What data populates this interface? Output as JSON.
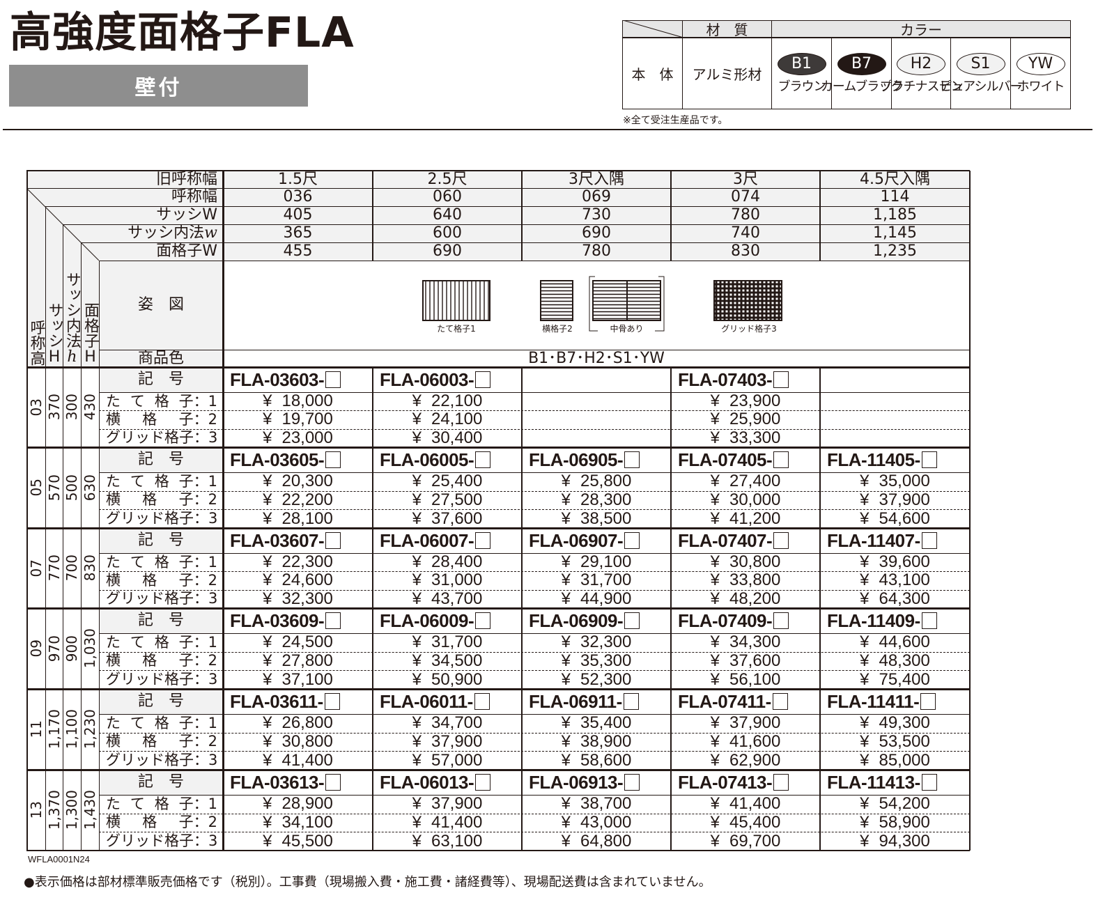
{
  "title": "高強度面格子FLA",
  "mount_tag": "壁付",
  "spec": {
    "material_header": "材　質",
    "color_header": "カラー",
    "row_label": "本　体",
    "material": "アルミ形材",
    "colors": [
      {
        "code": "B1",
        "name": "ブラウン",
        "fill": "#3e3a39",
        "text": "#ffffff"
      },
      {
        "code": "B7",
        "name": "カームブラック",
        "fill": "#231815",
        "text": "#ffffff"
      },
      {
        "code": "H2",
        "name": "プラチナステン",
        "fill": "#f2f2f2",
        "text": "#231815"
      },
      {
        "code": "S1",
        "name": "ピュアシルバー",
        "fill": "#f2f2f2",
        "text": "#231815"
      },
      {
        "code": "YW",
        "name": "ホワイト",
        "fill": "#ffffff",
        "text": "#231815"
      }
    ],
    "note": "※全て受注生産品です。"
  },
  "table": {
    "row_labels": {
      "old_width": "旧呼称幅",
      "width": "呼称幅",
      "sash_w": "サッシW",
      "sash_inner_w": "サッシ内法",
      "sash_inner_w_var": "w",
      "grille_w": "面格子W",
      "figure": "姿　図",
      "color": "商品色",
      "code": "記　号",
      "types": [
        {
          "name": "たて格子",
          "num": "：1"
        },
        {
          "name": "横格子",
          "num": "：2"
        },
        {
          "name": "グリッド格子",
          "num": "：3"
        }
      ]
    },
    "vertical_headers": {
      "height": "呼称高",
      "sash_h": "サッシH",
      "sash_inner_h": "サッシ内法",
      "sash_inner_h_var": "h",
      "grille_h": "面格子H"
    },
    "columns": [
      {
        "old_width": "1.5尺",
        "width": "036",
        "sash_w": "405",
        "inner_w": "365",
        "grille_w": "455"
      },
      {
        "old_width": "2.5尺",
        "width": "060",
        "sash_w": "640",
        "inner_w": "600",
        "grille_w": "690"
      },
      {
        "old_width": "3尺入隅",
        "width": "069",
        "sash_w": "730",
        "inner_w": "690",
        "grille_w": "780"
      },
      {
        "old_width": "3尺",
        "width": "074",
        "sash_w": "780",
        "inner_w": "740",
        "grille_w": "830"
      },
      {
        "old_width": "4.5尺入隅",
        "width": "114",
        "sash_w": "1,185",
        "inner_w": "1,145",
        "grille_w": "1,235"
      }
    ],
    "figures": [
      "たて格子1",
      "横格子2",
      "中骨あり",
      "グリッド格子3"
    ],
    "color_codes": "B1･B7･H2･S1･YW",
    "currency": "¥",
    "blocks": [
      {
        "height": "03",
        "sash_h": "370",
        "inner_h": "300",
        "grille_h": "430",
        "cells": [
          {
            "code": "FLA-03603-",
            "prices": [
              "18,000",
              "19,700",
              "23,000"
            ]
          },
          {
            "code": "FLA-06003-",
            "prices": [
              "22,100",
              "24,100",
              "30,400"
            ]
          },
          null,
          {
            "code": "FLA-07403-",
            "prices": [
              "23,900",
              "25,900",
              "33,300"
            ]
          },
          null
        ]
      },
      {
        "height": "05",
        "sash_h": "570",
        "inner_h": "500",
        "grille_h": "630",
        "cells": [
          {
            "code": "FLA-03605-",
            "prices": [
              "20,300",
              "22,200",
              "28,100"
            ]
          },
          {
            "code": "FLA-06005-",
            "prices": [
              "25,400",
              "27,500",
              "37,600"
            ]
          },
          {
            "code": "FLA-06905-",
            "prices": [
              "25,800",
              "28,300",
              "38,500"
            ]
          },
          {
            "code": "FLA-07405-",
            "prices": [
              "27,400",
              "30,000",
              "41,200"
            ]
          },
          {
            "code": "FLA-11405-",
            "prices": [
              "35,000",
              "37,900",
              "54,600"
            ]
          }
        ]
      },
      {
        "height": "07",
        "sash_h": "770",
        "inner_h": "700",
        "grille_h": "830",
        "cells": [
          {
            "code": "FLA-03607-",
            "prices": [
              "22,300",
              "24,600",
              "32,300"
            ]
          },
          {
            "code": "FLA-06007-",
            "prices": [
              "28,400",
              "31,000",
              "43,700"
            ]
          },
          {
            "code": "FLA-06907-",
            "prices": [
              "29,100",
              "31,700",
              "44,900"
            ]
          },
          {
            "code": "FLA-07407-",
            "prices": [
              "30,800",
              "33,800",
              "48,200"
            ]
          },
          {
            "code": "FLA-11407-",
            "prices": [
              "39,600",
              "43,100",
              "64,300"
            ]
          }
        ]
      },
      {
        "height": "09",
        "sash_h": "970",
        "inner_h": "900",
        "grille_h": "1,030",
        "cells": [
          {
            "code": "FLA-03609-",
            "prices": [
              "24,500",
              "27,800",
              "37,100"
            ]
          },
          {
            "code": "FLA-06009-",
            "prices": [
              "31,700",
              "34,500",
              "50,900"
            ]
          },
          {
            "code": "FLA-06909-",
            "prices": [
              "32,300",
              "35,300",
              "52,300"
            ]
          },
          {
            "code": "FLA-07409-",
            "prices": [
              "34,300",
              "37,600",
              "56,100"
            ]
          },
          {
            "code": "FLA-11409-",
            "prices": [
              "44,600",
              "48,300",
              "75,400"
            ]
          }
        ]
      },
      {
        "height": "11",
        "sash_h": "1,170",
        "inner_h": "1,100",
        "grille_h": "1,230",
        "cells": [
          {
            "code": "FLA-03611-",
            "prices": [
              "26,800",
              "30,800",
              "41,400"
            ]
          },
          {
            "code": "FLA-06011-",
            "prices": [
              "34,700",
              "37,900",
              "57,000"
            ]
          },
          {
            "code": "FLA-06911-",
            "prices": [
              "35,400",
              "38,900",
              "58,600"
            ]
          },
          {
            "code": "FLA-07411-",
            "prices": [
              "37,900",
              "41,600",
              "62,900"
            ]
          },
          {
            "code": "FLA-11411-",
            "prices": [
              "49,300",
              "53,500",
              "85,000"
            ]
          }
        ]
      },
      {
        "height": "13",
        "sash_h": "1,370",
        "inner_h": "1,300",
        "grille_h": "1,430",
        "cells": [
          {
            "code": "FLA-03613-",
            "prices": [
              "28,900",
              "34,100",
              "45,500"
            ]
          },
          {
            "code": "FLA-06013-",
            "prices": [
              "37,900",
              "41,400",
              "63,100"
            ]
          },
          {
            "code": "FLA-06913-",
            "prices": [
              "38,700",
              "43,000",
              "64,800"
            ]
          },
          {
            "code": "FLA-07413-",
            "prices": [
              "41,400",
              "45,400",
              "69,700"
            ]
          },
          {
            "code": "FLA-11413-",
            "prices": [
              "54,200",
              "58,900",
              "94,300"
            ]
          }
        ]
      }
    ]
  },
  "doc_code": "WFLA0001N24",
  "footnote": "●表示価格は部材標準販売価格です（税別）。工事費（現場搬入費・施工費・諸経費等）、現場配送費は含まれていません。"
}
